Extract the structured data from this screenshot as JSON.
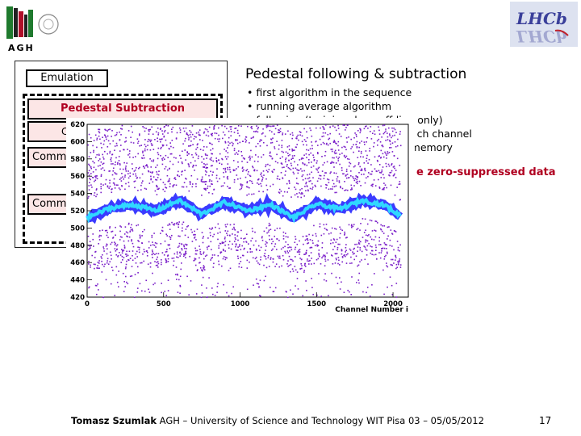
{
  "logos": {
    "left_text": "AGH",
    "right_text": "LHCb"
  },
  "diagram": {
    "emulation_label": "Emulation",
    "pedestal_label": "Pedestal Subtraction",
    "step2_label": "C",
    "cmn1_label": "Comm",
    "cmn2_label": "Comm"
  },
  "slide": {
    "title": "Pedestal following & subtraction",
    "bullets": [
      "• first algorithm in the sequence",
      "• running average algorithm",
      "• following (training done off-line only)",
      "                                                     ch channel",
      "                                                   memory"
    ],
    "highlight": "e zero-suppressed data"
  },
  "chart_data": {
    "type": "scatter",
    "title": "",
    "xlabel": "Channel Number i",
    "ylabel": "",
    "xlim": [
      0,
      2100
    ],
    "ylim": [
      420,
      620
    ],
    "xticks": [
      0,
      500,
      1000,
      1500,
      2000
    ],
    "yticks": [
      420,
      440,
      460,
      480,
      500,
      520,
      540,
      560,
      580,
      600,
      620
    ],
    "band_center": [
      [
        0,
        512
      ],
      [
        150,
        523
      ],
      [
        300,
        527
      ],
      [
        450,
        520
      ],
      [
        600,
        532
      ],
      [
        750,
        516
      ],
      [
        900,
        530
      ],
      [
        1050,
        520
      ],
      [
        1200,
        527
      ],
      [
        1350,
        512
      ],
      [
        1500,
        528
      ],
      [
        1650,
        522
      ],
      [
        1800,
        532
      ],
      [
        1950,
        526
      ],
      [
        2048,
        514
      ]
    ],
    "colors": {
      "scatter": "#7a1fc9",
      "band_outer": "#3b3bff",
      "band_inner": "#30d8ff"
    }
  },
  "footer": {
    "author": "Tomasz Szumlak",
    "text": " AGH – University of Science and Technology WIT Pisa 03 – 05/05/2012",
    "page": "17"
  }
}
